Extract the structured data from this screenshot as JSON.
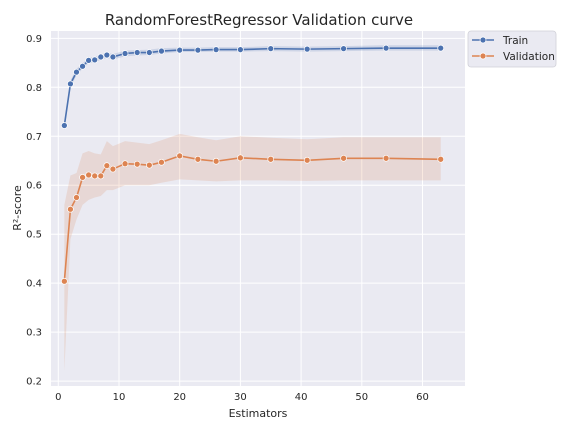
{
  "chart_data": {
    "type": "line",
    "title": "RandomForestRegressor Validation curve",
    "xlabel": "Estimators",
    "ylabel": "R²-score",
    "xlim": [
      -1.2,
      67
    ],
    "ylim": [
      0.19,
      0.915
    ],
    "xticks": [
      0,
      10,
      20,
      30,
      40,
      50,
      60
    ],
    "yticks": [
      0.2,
      0.3,
      0.4,
      0.5,
      0.6,
      0.7,
      0.8,
      0.9
    ],
    "ytick_labels": [
      "0.2",
      "0.3",
      "0.4",
      "0.5",
      "0.6",
      "0.7",
      "0.8",
      "0.9"
    ],
    "grid": true,
    "legend_position": "outside-top-right",
    "x": [
      1,
      2,
      3,
      4,
      5,
      6,
      7,
      8,
      9,
      11,
      13,
      15,
      17,
      20,
      23,
      26,
      30,
      35,
      41,
      47,
      54,
      63
    ],
    "series": [
      {
        "name": "Train",
        "color": "#4c72b0",
        "values": [
          0.722,
          0.807,
          0.831,
          0.843,
          0.855,
          0.856,
          0.862,
          0.866,
          0.862,
          0.869,
          0.871,
          0.871,
          0.874,
          0.876,
          0.876,
          0.877,
          0.877,
          0.879,
          0.878,
          0.879,
          0.88,
          0.88
        ],
        "lower": [
          0.712,
          0.8,
          0.824,
          0.838,
          0.849,
          0.851,
          0.856,
          0.86,
          0.857,
          0.863,
          0.865,
          0.866,
          0.869,
          0.872,
          0.872,
          0.873,
          0.873,
          0.874,
          0.873,
          0.874,
          0.875,
          0.875
        ],
        "upper": [
          0.732,
          0.814,
          0.838,
          0.849,
          0.861,
          0.862,
          0.867,
          0.871,
          0.868,
          0.875,
          0.876,
          0.877,
          0.88,
          0.881,
          0.881,
          0.882,
          0.882,
          0.884,
          0.883,
          0.884,
          0.886,
          0.886
        ]
      },
      {
        "name": "Validation",
        "color": "#dd8452",
        "values": [
          0.404,
          0.551,
          0.575,
          0.616,
          0.621,
          0.619,
          0.619,
          0.64,
          0.633,
          0.644,
          0.643,
          0.641,
          0.647,
          0.66,
          0.653,
          0.649,
          0.656,
          0.653,
          0.651,
          0.655,
          0.655,
          0.653
        ],
        "lower": [
          0.22,
          0.49,
          0.53,
          0.56,
          0.57,
          0.575,
          0.578,
          0.59,
          0.59,
          0.6,
          0.6,
          0.6,
          0.605,
          0.612,
          0.61,
          0.608,
          0.61,
          0.61,
          0.609,
          0.61,
          0.61,
          0.61
        ],
        "upper": [
          0.56,
          0.62,
          0.625,
          0.665,
          0.67,
          0.665,
          0.663,
          0.69,
          0.68,
          0.69,
          0.687,
          0.684,
          0.692,
          0.705,
          0.698,
          0.692,
          0.7,
          0.697,
          0.694,
          0.698,
          0.698,
          0.698
        ]
      }
    ]
  }
}
